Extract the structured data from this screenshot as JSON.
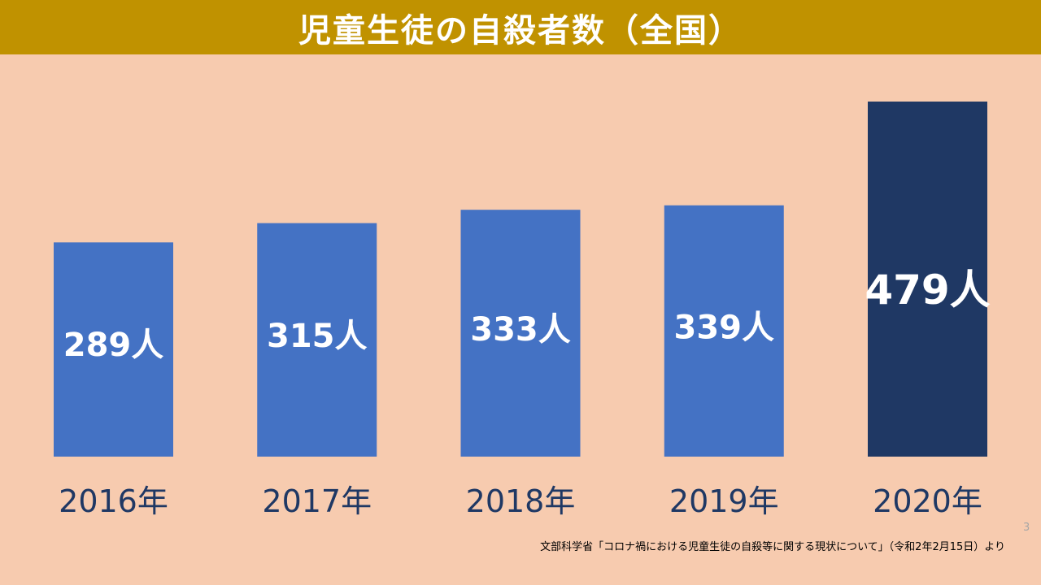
{
  "title": "児童生徒の自殺者数（全国）",
  "page_number": "3",
  "source_note": "文部科学省「コロナ禍における児童生徒の自殺等に関する現状について」（令和2年2月15日）より",
  "colors": {
    "background": "#F7CBAF",
    "title_bar": "#C09200",
    "bar": "#4472C4",
    "bar_highlight": "#1F3864",
    "year_text": "#1F3864"
  },
  "chart_data": {
    "type": "bar",
    "title": "児童生徒の自殺者数（全国）",
    "categories": [
      "2016年",
      "2017年",
      "2018年",
      "2019年",
      "2020年"
    ],
    "values": [
      289,
      315,
      333,
      339,
      479
    ],
    "data_labels": [
      "289人",
      "315人",
      "333人",
      "339人",
      "479人"
    ],
    "highlight_index": 4,
    "ylim": [
      0,
      479
    ],
    "grid": false,
    "legend": "none"
  }
}
